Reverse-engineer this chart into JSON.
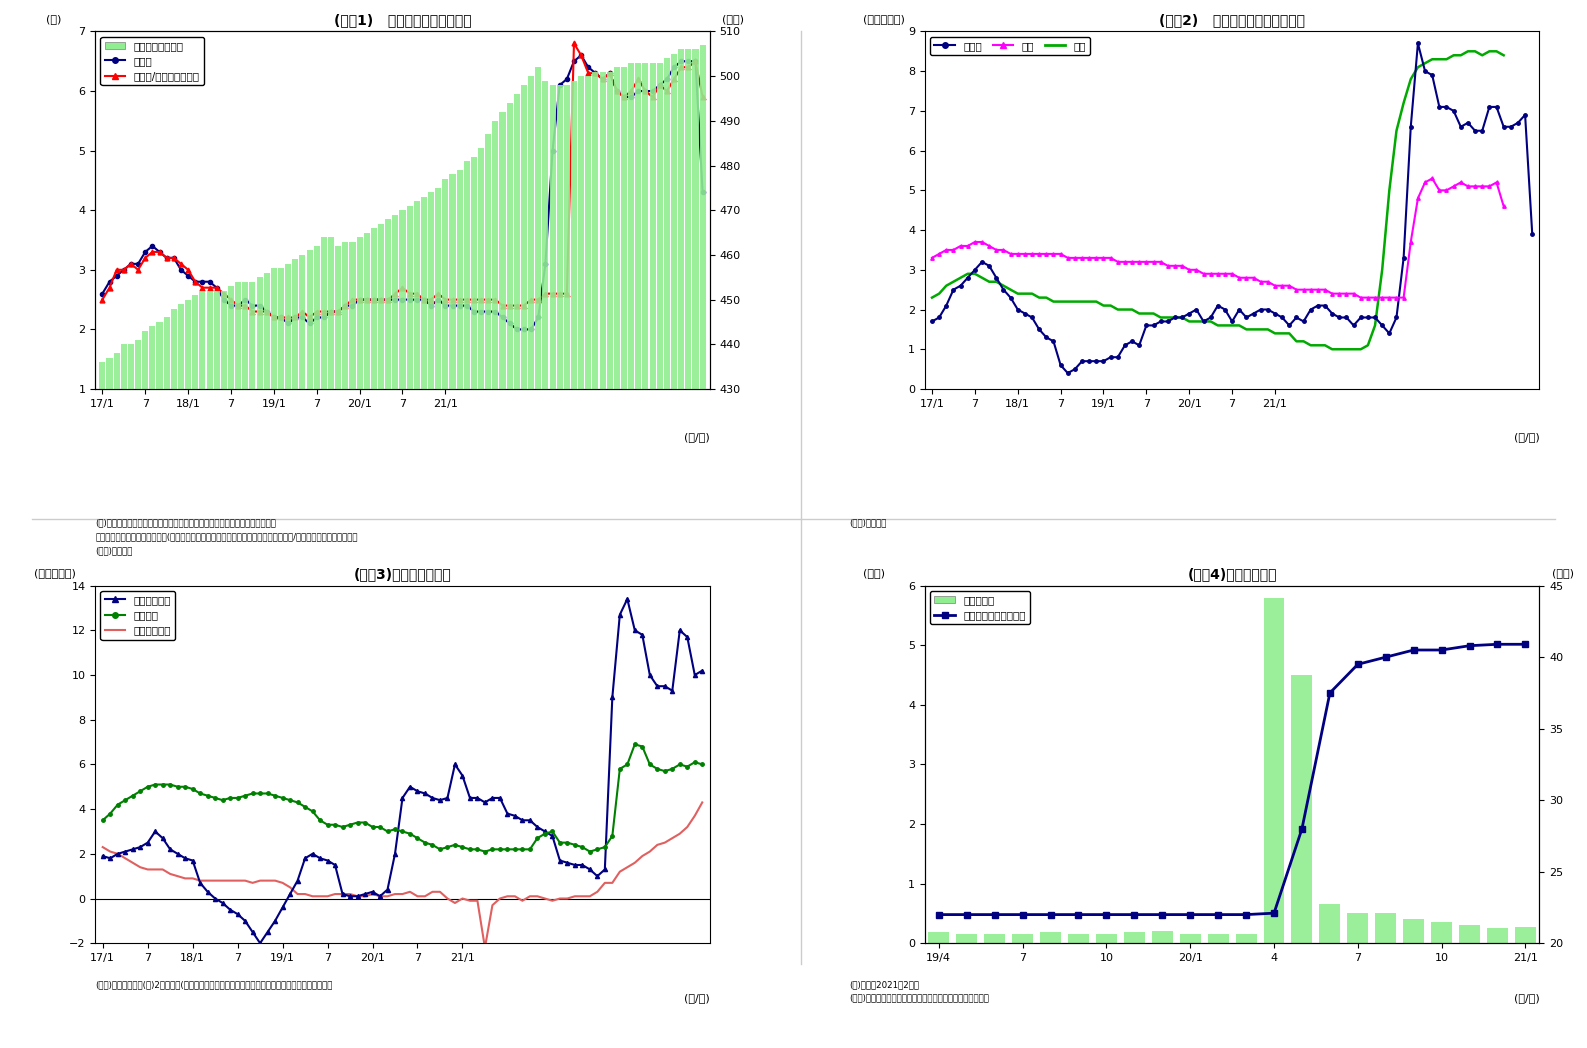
{
  "fig1": {
    "title": "(図袆1)   銀行貸出残高の増減率",
    "ylabel_left": "(％)",
    "ylabel_right": "(兆円)",
    "xlabel": "(年/月)",
    "ylim_left": [
      1.0,
      7.0
    ],
    "ylim_right": [
      430,
      510
    ],
    "yticks_left": [
      1.0,
      2.0,
      3.0,
      4.0,
      5.0,
      6.0,
      7.0
    ],
    "yticks_right": [
      430,
      440,
      450,
      460,
      470,
      480,
      490,
      500,
      510
    ],
    "bar_color": "#90EE90",
    "line1_color": "#000080",
    "line2_color": "#FF0000",
    "legend": [
      "貸出残高（右軸）",
      "前年比",
      "前年比/特殊要因調整後"
    ],
    "note1": "(注)特殊要因調整後は、為替変動・債権償却・流動化等の影響を考慮したもの",
    "note2": "　　特殊要因調整後の前年比＝(今月の調整後貸出残高－前年同月の調整前貸出残高）/前年同月の調整前貸出残高",
    "source": "(資料)日本銀行",
    "xtick_labels": [
      "17/1",
      "7",
      "18/1",
      "7",
      "19/1",
      "7",
      "20/1",
      "7",
      "21/1"
    ],
    "bar_data": [
      436,
      437,
      438,
      440,
      440,
      441,
      443,
      444,
      445,
      446,
      448,
      449,
      450,
      451,
      452,
      452,
      452,
      452,
      453,
      454,
      454,
      454,
      455,
      456,
      457,
      457,
      458,
      459,
      460,
      461,
      462,
      464,
      464,
      462,
      463,
      463,
      464,
      465,
      466,
      467,
      468,
      469,
      470,
      471,
      472,
      473,
      474,
      475,
      477,
      478,
      479,
      481,
      482,
      484,
      487,
      490,
      492,
      494,
      496,
      498,
      500,
      502,
      499,
      498,
      498,
      498,
      499,
      500,
      500,
      501,
      501,
      501,
      502,
      502,
      503,
      503,
      503,
      503,
      503,
      504,
      505,
      506,
      506,
      506,
      507
    ],
    "line1_data": [
      2.6,
      2.8,
      2.9,
      3.0,
      3.1,
      3.1,
      3.3,
      3.4,
      3.3,
      3.2,
      3.2,
      3.0,
      2.9,
      2.8,
      2.8,
      2.8,
      2.7,
      2.5,
      2.4,
      2.4,
      2.5,
      2.4,
      2.4,
      2.3,
      2.2,
      2.2,
      2.1,
      2.2,
      2.2,
      2.1,
      2.2,
      2.2,
      2.3,
      2.3,
      2.4,
      2.4,
      2.5,
      2.5,
      2.5,
      2.5,
      2.5,
      2.5,
      2.5,
      2.5,
      2.5,
      2.5,
      2.4,
      2.5,
      2.4,
      2.4,
      2.4,
      2.4,
      2.3,
      2.3,
      2.3,
      2.3,
      2.2,
      2.1,
      2.0,
      2.0,
      2.0,
      2.2,
      3.1,
      5.0,
      6.1,
      6.2,
      6.5,
      6.6,
      6.4,
      6.3,
      6.2,
      6.3,
      6.0,
      5.9,
      5.9,
      6.0,
      6.0,
      6.0,
      6.1,
      6.2,
      6.4,
      6.5,
      6.5,
      6.5,
      4.3
    ],
    "line2_data": [
      2.5,
      2.7,
      3.0,
      3.0,
      3.1,
      3.0,
      3.2,
      3.3,
      3.3,
      3.2,
      3.2,
      3.1,
      3.0,
      2.8,
      2.7,
      2.7,
      2.7,
      2.6,
      2.5,
      2.4,
      2.4,
      2.3,
      2.3,
      2.3,
      2.2,
      2.2,
      2.2,
      2.2,
      2.3,
      2.2,
      2.3,
      2.3,
      2.3,
      2.3,
      2.4,
      2.5,
      2.5,
      2.5,
      2.5,
      2.5,
      2.5,
      2.6,
      2.7,
      2.6,
      2.6,
      2.5,
      2.5,
      2.6,
      2.5,
      2.5,
      2.5,
      2.5,
      2.5,
      2.5,
      2.5,
      2.5,
      2.4,
      2.4,
      2.4,
      2.4,
      2.5,
      2.5,
      2.6,
      2.6,
      2.6,
      2.6,
      6.8,
      6.6,
      6.3,
      6.3,
      6.2,
      6.3,
      6.0,
      5.9,
      6.0,
      6.2,
      6.0,
      5.9,
      6.1,
      6.0,
      6.2,
      6.4,
      6.4,
      6.5,
      5.9
    ]
  },
  "fig2": {
    "title": "(図袆2)   業態別の貸出残高増減率",
    "ylabel_left": "(前年比、％)",
    "xlabel": "(年/月)",
    "ylim": [
      0,
      9
    ],
    "yticks": [
      0,
      1,
      2,
      3,
      4,
      5,
      6,
      7,
      8,
      9
    ],
    "line1_color": "#000080",
    "line2_color": "#FF00FF",
    "line3_color": "#00AA00",
    "legend": [
      "都銀等",
      "地銀",
      "信金"
    ],
    "source": "(資料)日本銀行",
    "xtick_labels": [
      "17/1",
      "7",
      "18/1",
      "7",
      "19/1",
      "7",
      "20/1",
      "7",
      "21/1"
    ],
    "line1_data": [
      1.7,
      1.8,
      2.1,
      2.5,
      2.6,
      2.8,
      3.0,
      3.2,
      3.1,
      2.8,
      2.5,
      2.3,
      2.0,
      1.9,
      1.8,
      1.5,
      1.3,
      1.2,
      0.6,
      0.4,
      0.5,
      0.7,
      0.7,
      0.7,
      0.7,
      0.8,
      0.8,
      1.1,
      1.2,
      1.1,
      1.6,
      1.6,
      1.7,
      1.7,
      1.8,
      1.8,
      1.9,
      2.0,
      1.7,
      1.8,
      2.1,
      2.0,
      1.7,
      2.0,
      1.8,
      1.9,
      2.0,
      2.0,
      1.9,
      1.8,
      1.6,
      1.8,
      1.7,
      2.0,
      2.1,
      2.1,
      1.9,
      1.8,
      1.8,
      1.6,
      1.8,
      1.8,
      1.8,
      1.6,
      1.4,
      1.8,
      3.3,
      6.6,
      8.7,
      8.0,
      7.9,
      7.1,
      7.1,
      7.0,
      6.6,
      6.7,
      6.5,
      6.5,
      7.1,
      7.1,
      6.6,
      6.6,
      6.7,
      6.9,
      3.9
    ],
    "line2_data": [
      3.3,
      3.4,
      3.5,
      3.5,
      3.6,
      3.6,
      3.7,
      3.7,
      3.6,
      3.5,
      3.5,
      3.4,
      3.4,
      3.4,
      3.4,
      3.4,
      3.4,
      3.4,
      3.4,
      3.3,
      3.3,
      3.3,
      3.3,
      3.3,
      3.3,
      3.3,
      3.2,
      3.2,
      3.2,
      3.2,
      3.2,
      3.2,
      3.2,
      3.1,
      3.1,
      3.1,
      3.0,
      3.0,
      2.9,
      2.9,
      2.9,
      2.9,
      2.9,
      2.8,
      2.8,
      2.8,
      2.7,
      2.7,
      2.6,
      2.6,
      2.6,
      2.5,
      2.5,
      2.5,
      2.5,
      2.5,
      2.4,
      2.4,
      2.4,
      2.4,
      2.3,
      2.3,
      2.3,
      2.3,
      2.3,
      2.3,
      2.3,
      3.7,
      4.8,
      5.2,
      5.3,
      5.0,
      5.0,
      5.1,
      5.2,
      5.1,
      5.1,
      5.1,
      5.1,
      5.2,
      4.6
    ],
    "line3_data": [
      2.3,
      2.4,
      2.6,
      2.7,
      2.8,
      2.9,
      2.9,
      2.8,
      2.7,
      2.7,
      2.6,
      2.5,
      2.4,
      2.4,
      2.4,
      2.3,
      2.3,
      2.2,
      2.2,
      2.2,
      2.2,
      2.2,
      2.2,
      2.2,
      2.1,
      2.1,
      2.0,
      2.0,
      2.0,
      1.9,
      1.9,
      1.9,
      1.8,
      1.8,
      1.8,
      1.8,
      1.7,
      1.7,
      1.7,
      1.7,
      1.6,
      1.6,
      1.6,
      1.6,
      1.5,
      1.5,
      1.5,
      1.5,
      1.4,
      1.4,
      1.4,
      1.2,
      1.2,
      1.1,
      1.1,
      1.1,
      1.0,
      1.0,
      1.0,
      1.0,
      1.0,
      1.1,
      1.6,
      3.0,
      5.0,
      6.5,
      7.2,
      7.8,
      8.1,
      8.2,
      8.3,
      8.3,
      8.3,
      8.4,
      8.4,
      8.5,
      8.5,
      8.4,
      8.5,
      8.5,
      8.4
    ]
  },
  "fig3": {
    "title": "(図袆3)貸出先別貸出金",
    "ylabel_left": "(前年比、％)",
    "xlabel": "(年/月)",
    "ylim": [
      -2,
      14
    ],
    "yticks": [
      -2,
      0,
      2,
      4,
      6,
      8,
      10,
      12,
      14
    ],
    "line1_color": "#000080",
    "line2_color": "#008000",
    "line3_color": "#E06060",
    "legend": [
      "大・中堅企業",
      "中小企業",
      "地方公共団体"
    ],
    "source": "(資料)日本銀行",
    "note": "(注)2月分まで(末残ベース）、大・中堅企業は「法人」－「中小企業」にて算出",
    "xtick_labels": [
      "17/1",
      "7",
      "18/1",
      "7",
      "19/1",
      "7",
      "20/1",
      "7",
      "21/1"
    ],
    "line1_data": [
      1.9,
      1.8,
      2.0,
      2.1,
      2.2,
      2.3,
      2.5,
      3.0,
      2.7,
      2.2,
      2.0,
      1.8,
      1.7,
      0.7,
      0.3,
      0.0,
      -0.2,
      -0.5,
      -0.7,
      -1.0,
      -1.5,
      -2.0,
      -1.5,
      -1.0,
      -0.4,
      0.2,
      0.8,
      1.8,
      2.0,
      1.8,
      1.7,
      1.5,
      0.2,
      0.1,
      0.1,
      0.2,
      0.3,
      0.1,
      0.4,
      2.0,
      4.5,
      5.0,
      4.8,
      4.7,
      4.5,
      4.4,
      4.5,
      6.0,
      5.5,
      4.5,
      4.5,
      4.3,
      4.5,
      4.5,
      3.8,
      3.7,
      3.5,
      3.5,
      3.2,
      3.0,
      2.8,
      1.7,
      1.6,
      1.5,
      1.5,
      1.3,
      1.0,
      1.3,
      9.0,
      12.7,
      13.4,
      12.0,
      11.8,
      10.0,
      9.5,
      9.5,
      9.3,
      12.0,
      11.7,
      10.0,
      10.2
    ],
    "line2_data": [
      3.5,
      3.8,
      4.2,
      4.4,
      4.6,
      4.8,
      5.0,
      5.1,
      5.1,
      5.1,
      5.0,
      5.0,
      4.9,
      4.7,
      4.6,
      4.5,
      4.4,
      4.5,
      4.5,
      4.6,
      4.7,
      4.7,
      4.7,
      4.6,
      4.5,
      4.4,
      4.3,
      4.1,
      3.9,
      3.5,
      3.3,
      3.3,
      3.2,
      3.3,
      3.4,
      3.4,
      3.2,
      3.2,
      3.0,
      3.1,
      3.0,
      2.9,
      2.7,
      2.5,
      2.4,
      2.2,
      2.3,
      2.4,
      2.3,
      2.2,
      2.2,
      2.1,
      2.2,
      2.2,
      2.2,
      2.2,
      2.2,
      2.2,
      2.7,
      2.9,
      3.0,
      2.5,
      2.5,
      2.4,
      2.3,
      2.1,
      2.2,
      2.3,
      2.8,
      5.8,
      6.0,
      6.9,
      6.8,
      6.0,
      5.8,
      5.7,
      5.8,
      6.0,
      5.9,
      6.1,
      6.0
    ],
    "line3_data": [
      2.3,
      2.1,
      2.0,
      1.8,
      1.6,
      1.4,
      1.3,
      1.3,
      1.3,
      1.1,
      1.0,
      0.9,
      0.9,
      0.8,
      0.8,
      0.8,
      0.8,
      0.8,
      0.8,
      0.8,
      0.7,
      0.8,
      0.8,
      0.8,
      0.7,
      0.5,
      0.2,
      0.2,
      0.1,
      0.1,
      0.1,
      0.2,
      0.2,
      0.2,
      0.1,
      0.1,
      0.2,
      0.1,
      0.1,
      0.2,
      0.2,
      0.3,
      0.1,
      0.1,
      0.3,
      0.3,
      0.0,
      -0.2,
      0.0,
      -0.1,
      -0.1,
      -2.2,
      -0.3,
      0.0,
      0.1,
      0.1,
      -0.1,
      0.1,
      0.1,
      0.0,
      -0.1,
      0.0,
      0.0,
      0.1,
      0.1,
      0.1,
      0.3,
      0.7,
      0.7,
      1.2,
      1.4,
      1.6,
      1.9,
      2.1,
      2.4,
      2.5,
      2.7,
      2.9,
      3.2,
      3.7,
      4.3
    ]
  },
  "fig4": {
    "title": "(図袆4)信用保証実績",
    "ylabel_left": "(兆円)",
    "ylabel_right": "(兆円)",
    "xlabel": "(年/月)",
    "ylim_left": [
      0,
      6
    ],
    "ylim_right": [
      20,
      45
    ],
    "yticks_left": [
      0,
      1,
      2,
      3,
      4,
      5,
      6
    ],
    "yticks_right": [
      20,
      25,
      30,
      35,
      40,
      45
    ],
    "bar_color": "#90EE90",
    "line_color": "#000080",
    "legend": [
      "保証承誸額",
      "保証債務残高（右軸）"
    ],
    "note": "(注)直近は2021年2月分",
    "source": "(資料)全国信用保証協会連合会よりニッセイ基礎研究所作成",
    "xtick_labels": [
      "19/4",
      "7",
      "10",
      "20/1",
      "4",
      "7",
      "10",
      "21/1"
    ],
    "bar_data": [
      0.18,
      0.15,
      0.15,
      0.15,
      0.18,
      0.15,
      0.15,
      0.18,
      0.2,
      0.15,
      0.15,
      0.15,
      5.8,
      4.5,
      0.65,
      0.5,
      0.5,
      0.4,
      0.35,
      0.3,
      0.25,
      0.28
    ],
    "line_data": [
      22.0,
      22.0,
      22.0,
      22.0,
      22.0,
      22.0,
      22.0,
      22.0,
      22.0,
      22.0,
      22.0,
      22.0,
      22.1,
      28.0,
      37.5,
      39.5,
      40.0,
      40.5,
      40.5,
      40.8,
      40.9,
      40.9
    ]
  },
  "background_color": "#FFFFFF",
  "divider_color": "#AAAAAA"
}
